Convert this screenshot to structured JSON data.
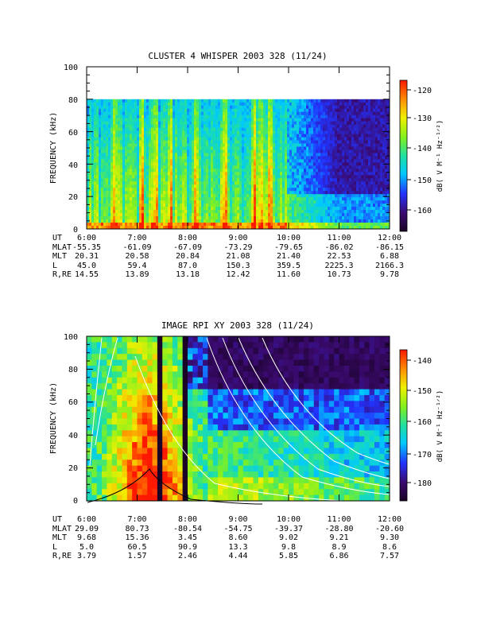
{
  "chart_data": [
    {
      "type": "heatmap",
      "title": "CLUSTER 4 WHISPER 2003 328 (11/24)",
      "ylabel": "FREQUENCY (kHz)",
      "ylim": [
        0,
        100
      ],
      "y_ticks": [
        "0",
        "20",
        "40",
        "60",
        "80",
        "100"
      ],
      "x_ticks": [
        "6:00",
        "7:00",
        "8:00",
        "9:00",
        "10:00",
        "11:00",
        "12:00"
      ],
      "data_upper_freq_khz": 80,
      "colorbar": {
        "label": "dB( V M⁻¹ Hz⁻¹ᐟ²)",
        "range": [
          -167,
          -118
        ],
        "ticks": [
          "-120",
          "-130",
          "-140",
          "-150",
          "-160"
        ]
      },
      "ephemeris": {
        "labels": [
          "UT",
          "MLAT",
          "MLT",
          "L",
          "R,RE"
        ],
        "rows": [
          [
            "6:00",
            "7:00",
            "8:00",
            "9:00",
            "10:00",
            "11:00",
            "12:00"
          ],
          [
            "-55.35",
            "-61.09",
            "-67.09",
            "-73.29",
            "-79.65",
            "-86.02",
            "-86.15"
          ],
          [
            "20.31",
            "20.58",
            "20.84",
            "21.08",
            "21.40",
            "22.53",
            "6.88"
          ],
          [
            "45.0",
            "59.4",
            "87.0",
            "150.3",
            "359.5",
            "2225.3",
            "2166.3"
          ],
          [
            "14.55",
            "13.89",
            "13.18",
            "12.42",
            "11.60",
            "10.73",
            "9.78"
          ]
        ]
      }
    },
    {
      "type": "heatmap",
      "title": "IMAGE RPI XY 2003 328 (11/24)",
      "ylabel": "FREQUENCY (kHz)",
      "ylim": [
        0,
        100
      ],
      "y_ticks": [
        "0",
        "20",
        "40",
        "60",
        "80",
        "100"
      ],
      "x_ticks": [
        "6:00",
        "7:00",
        "8:00",
        "9:00",
        "10:00",
        "11:00",
        "12:00"
      ],
      "colorbar": {
        "label": "dB( V M⁻¹ Hz⁻¹ᐟ²)",
        "range": [
          -185,
          -135
        ],
        "ticks": [
          "-140",
          "-150",
          "-160",
          "-170",
          "-180"
        ]
      },
      "ephemeris": {
        "labels": [
          "UT",
          "MLAT",
          "MLT",
          "L",
          "R,RE"
        ],
        "rows": [
          [
            "6:00",
            "7:00",
            "8:00",
            "9:00",
            "10:00",
            "11:00",
            "12:00"
          ],
          [
            "29.09",
            "80.73",
            "-80.54",
            "-54.75",
            "-39.37",
            "-28.80",
            "-20.60"
          ],
          [
            "9.68",
            "15.36",
            "3.45",
            "8.60",
            "9.02",
            "9.21",
            "9.30"
          ],
          [
            "5.0",
            "60.5",
            "90.9",
            "13.3",
            "9.8",
            "8.9",
            "8.6"
          ],
          [
            "3.79",
            "1.57",
            "2.46",
            "4.44",
            "5.85",
            "6.86",
            "7.57"
          ]
        ]
      }
    }
  ]
}
